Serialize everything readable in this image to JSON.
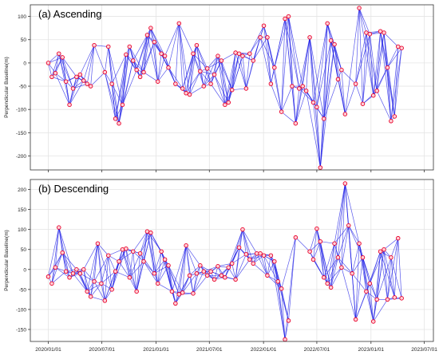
{
  "chart_data": [
    {
      "type": "scatter",
      "title": "(a) Ascending",
      "xlabel": "",
      "ylabel": "Perpendicular Baseline(m)",
      "x_is_date": true,
      "xlim": [
        "2019-11-01",
        "2023-08-01"
      ],
      "ylim": [
        -230,
        125
      ],
      "yticks": [
        100,
        50,
        0,
        -50,
        -100,
        -150,
        -200
      ],
      "grid": true,
      "point_color": "#e8002a",
      "line_color": "#1f1fe6",
      "points": [
        {
          "date": "2020-01-01",
          "y": 0
        },
        {
          "date": "2020-01-13",
          "y": -30
        },
        {
          "date": "2020-01-25",
          "y": -22
        },
        {
          "date": "2020-02-06",
          "y": 20
        },
        {
          "date": "2020-02-18",
          "y": 12
        },
        {
          "date": "2020-03-01",
          "y": -40
        },
        {
          "date": "2020-03-13",
          "y": -90
        },
        {
          "date": "2020-03-25",
          "y": -55
        },
        {
          "date": "2020-04-06",
          "y": -30
        },
        {
          "date": "2020-04-18",
          "y": -25
        },
        {
          "date": "2020-04-30",
          "y": -38
        },
        {
          "date": "2020-05-12",
          "y": -45
        },
        {
          "date": "2020-05-24",
          "y": -50
        },
        {
          "date": "2020-06-05",
          "y": 38
        },
        {
          "date": "2020-07-11",
          "y": -20
        },
        {
          "date": "2020-07-23",
          "y": 35
        },
        {
          "date": "2020-08-04",
          "y": -45
        },
        {
          "date": "2020-08-16",
          "y": -120
        },
        {
          "date": "2020-08-28",
          "y": -130
        },
        {
          "date": "2020-09-09",
          "y": -90
        },
        {
          "date": "2020-09-21",
          "y": 18
        },
        {
          "date": "2020-10-03",
          "y": 35
        },
        {
          "date": "2020-10-15",
          "y": 5
        },
        {
          "date": "2020-10-27",
          "y": -15
        },
        {
          "date": "2020-11-08",
          "y": -30
        },
        {
          "date": "2020-11-20",
          "y": -20
        },
        {
          "date": "2020-12-02",
          "y": 60
        },
        {
          "date": "2020-12-14",
          "y": 75
        },
        {
          "date": "2020-12-26",
          "y": 45
        },
        {
          "date": "2021-01-07",
          "y": -40
        },
        {
          "date": "2021-01-19",
          "y": 20
        },
        {
          "date": "2021-01-31",
          "y": 15
        },
        {
          "date": "2021-02-12",
          "y": -10
        },
        {
          "date": "2021-03-08",
          "y": -45
        },
        {
          "date": "2021-03-20",
          "y": 85
        },
        {
          "date": "2021-04-01",
          "y": -55
        },
        {
          "date": "2021-04-13",
          "y": -65
        },
        {
          "date": "2021-04-25",
          "y": -68
        },
        {
          "date": "2021-05-07",
          "y": 20
        },
        {
          "date": "2021-05-19",
          "y": 38
        },
        {
          "date": "2021-05-31",
          "y": -18
        },
        {
          "date": "2021-06-12",
          "y": -50
        },
        {
          "date": "2021-06-24",
          "y": -12
        },
        {
          "date": "2021-07-06",
          "y": -45
        },
        {
          "date": "2021-07-18",
          "y": -25
        },
        {
          "date": "2021-07-30",
          "y": 15
        },
        {
          "date": "2021-08-11",
          "y": 5
        },
        {
          "date": "2021-08-23",
          "y": -90
        },
        {
          "date": "2021-09-04",
          "y": -85
        },
        {
          "date": "2021-09-16",
          "y": -58
        },
        {
          "date": "2021-09-28",
          "y": 22
        },
        {
          "date": "2021-10-10",
          "y": 20
        },
        {
          "date": "2021-10-22",
          "y": 15
        },
        {
          "date": "2021-11-03",
          "y": -55
        },
        {
          "date": "2021-11-15",
          "y": 20
        },
        {
          "date": "2021-11-27",
          "y": 5
        },
        {
          "date": "2021-12-21",
          "y": 55
        },
        {
          "date": "2022-01-02",
          "y": 80
        },
        {
          "date": "2022-01-14",
          "y": 55
        },
        {
          "date": "2022-01-26",
          "y": -45
        },
        {
          "date": "2022-02-07",
          "y": -10
        },
        {
          "date": "2022-03-03",
          "y": -105
        },
        {
          "date": "2022-03-15",
          "y": 95
        },
        {
          "date": "2022-03-27",
          "y": 100
        },
        {
          "date": "2022-04-08",
          "y": -50
        },
        {
          "date": "2022-04-20",
          "y": -130
        },
        {
          "date": "2022-05-02",
          "y": -55
        },
        {
          "date": "2022-05-14",
          "y": -50
        },
        {
          "date": "2022-05-26",
          "y": -60
        },
        {
          "date": "2022-06-07",
          "y": 55
        },
        {
          "date": "2022-06-19",
          "y": -85
        },
        {
          "date": "2022-07-01",
          "y": -95
        },
        {
          "date": "2022-07-13",
          "y": -225
        },
        {
          "date": "2022-07-25",
          "y": -120
        },
        {
          "date": "2022-08-06",
          "y": 85
        },
        {
          "date": "2022-08-18",
          "y": 48
        },
        {
          "date": "2022-08-30",
          "y": 40
        },
        {
          "date": "2022-09-11",
          "y": -35
        },
        {
          "date": "2022-09-23",
          "y": -15
        },
        {
          "date": "2022-10-05",
          "y": -110
        },
        {
          "date": "2022-11-10",
          "y": -45
        },
        {
          "date": "2022-11-22",
          "y": 118
        },
        {
          "date": "2022-12-04",
          "y": -88
        },
        {
          "date": "2022-12-16",
          "y": 65
        },
        {
          "date": "2022-12-28",
          "y": 62
        },
        {
          "date": "2023-01-09",
          "y": -70
        },
        {
          "date": "2023-01-21",
          "y": -60
        },
        {
          "date": "2023-02-02",
          "y": 68
        },
        {
          "date": "2023-02-14",
          "y": 65
        },
        {
          "date": "2023-02-26",
          "y": -10
        },
        {
          "date": "2023-03-10",
          "y": -125
        },
        {
          "date": "2023-03-22",
          "y": -115
        },
        {
          "date": "2023-04-03",
          "y": 35
        },
        {
          "date": "2023-04-15",
          "y": 32
        }
      ]
    },
    {
      "type": "scatter",
      "title": "(b) Descending",
      "xlabel": "",
      "ylabel": "Perpendicular Baseline(m)",
      "x_is_date": true,
      "xlim": [
        "2019-11-01",
        "2023-08-01"
      ],
      "ylim": [
        -180,
        225
      ],
      "yticks": [
        200,
        150,
        100,
        50,
        0,
        -50,
        -100,
        -150
      ],
      "xticks": [
        "2020/01/01",
        "2020/07/01",
        "2021/01/01",
        "2021/07/01",
        "2022/01/01",
        "2022/07/01",
        "2023/01/01",
        "2023/07/01"
      ],
      "grid": true,
      "point_color": "#e8002a",
      "line_color": "#1f1fe6",
      "points": [
        {
          "date": "2020-01-01",
          "y": -18
        },
        {
          "date": "2020-01-13",
          "y": -35
        },
        {
          "date": "2020-01-25",
          "y": 5
        },
        {
          "date": "2020-02-06",
          "y": 105
        },
        {
          "date": "2020-02-18",
          "y": 42
        },
        {
          "date": "2020-03-01",
          "y": -5
        },
        {
          "date": "2020-03-13",
          "y": -20
        },
        {
          "date": "2020-03-25",
          "y": -10
        },
        {
          "date": "2020-04-06",
          "y": 0
        },
        {
          "date": "2020-04-18",
          "y": -10
        },
        {
          "date": "2020-04-30",
          "y": 0
        },
        {
          "date": "2020-05-12",
          "y": -55
        },
        {
          "date": "2020-05-24",
          "y": -68
        },
        {
          "date": "2020-06-05",
          "y": -30
        },
        {
          "date": "2020-06-17",
          "y": 65
        },
        {
          "date": "2020-06-29",
          "y": -35
        },
        {
          "date": "2020-07-11",
          "y": -78
        },
        {
          "date": "2020-07-23",
          "y": 35
        },
        {
          "date": "2020-08-04",
          "y": -50
        },
        {
          "date": "2020-08-16",
          "y": -5
        },
        {
          "date": "2020-08-28",
          "y": 20
        },
        {
          "date": "2020-09-09",
          "y": 50
        },
        {
          "date": "2020-09-21",
          "y": 52
        },
        {
          "date": "2020-10-03",
          "y": -20
        },
        {
          "date": "2020-10-15",
          "y": 45
        },
        {
          "date": "2020-10-27",
          "y": -55
        },
        {
          "date": "2020-11-08",
          "y": 40
        },
        {
          "date": "2020-11-20",
          "y": 20
        },
        {
          "date": "2020-12-02",
          "y": 95
        },
        {
          "date": "2020-12-14",
          "y": 92
        },
        {
          "date": "2020-12-26",
          "y": -10
        },
        {
          "date": "2021-01-07",
          "y": -35
        },
        {
          "date": "2021-01-19",
          "y": 45
        },
        {
          "date": "2021-01-31",
          "y": 25
        },
        {
          "date": "2021-02-12",
          "y": 10
        },
        {
          "date": "2021-02-24",
          "y": -55
        },
        {
          "date": "2021-03-08",
          "y": -85
        },
        {
          "date": "2021-03-20",
          "y": -62
        },
        {
          "date": "2021-04-01",
          "y": -58
        },
        {
          "date": "2021-04-13",
          "y": 60
        },
        {
          "date": "2021-04-25",
          "y": -15
        },
        {
          "date": "2021-05-07",
          "y": -60
        },
        {
          "date": "2021-05-19",
          "y": -10
        },
        {
          "date": "2021-05-31",
          "y": 10
        },
        {
          "date": "2021-06-12",
          "y": -5
        },
        {
          "date": "2021-06-24",
          "y": -15
        },
        {
          "date": "2021-07-06",
          "y": -5
        },
        {
          "date": "2021-07-18",
          "y": -25
        },
        {
          "date": "2021-07-30",
          "y": 8
        },
        {
          "date": "2021-08-11",
          "y": -15
        },
        {
          "date": "2021-08-23",
          "y": -20
        },
        {
          "date": "2021-09-04",
          "y": 5
        },
        {
          "date": "2021-09-16",
          "y": 15
        },
        {
          "date": "2021-09-28",
          "y": -25
        },
        {
          "date": "2021-10-10",
          "y": 55
        },
        {
          "date": "2021-10-22",
          "y": 100
        },
        {
          "date": "2021-11-03",
          "y": 38
        },
        {
          "date": "2021-11-15",
          "y": 25
        },
        {
          "date": "2021-11-27",
          "y": 15
        },
        {
          "date": "2021-12-09",
          "y": 40
        },
        {
          "date": "2021-12-21",
          "y": 40
        },
        {
          "date": "2022-01-02",
          "y": 35
        },
        {
          "date": "2022-01-14",
          "y": -15
        },
        {
          "date": "2022-01-26",
          "y": 35
        },
        {
          "date": "2022-02-07",
          "y": 20
        },
        {
          "date": "2022-02-19",
          "y": -30
        },
        {
          "date": "2022-03-03",
          "y": -48
        },
        {
          "date": "2022-03-15",
          "y": -175
        },
        {
          "date": "2022-03-27",
          "y": -128
        },
        {
          "date": "2022-04-20",
          "y": 80
        },
        {
          "date": "2022-06-07",
          "y": 45
        },
        {
          "date": "2022-06-19",
          "y": 25
        },
        {
          "date": "2022-07-01",
          "y": 102
        },
        {
          "date": "2022-07-13",
          "y": 70
        },
        {
          "date": "2022-07-25",
          "y": -20
        },
        {
          "date": "2022-08-06",
          "y": -35
        },
        {
          "date": "2022-08-18",
          "y": -45
        },
        {
          "date": "2022-08-30",
          "y": 65
        },
        {
          "date": "2022-09-11",
          "y": 30
        },
        {
          "date": "2022-09-23",
          "y": 5
        },
        {
          "date": "2022-10-05",
          "y": 215
        },
        {
          "date": "2022-10-17",
          "y": 110
        },
        {
          "date": "2022-10-29",
          "y": -10
        },
        {
          "date": "2022-11-10",
          "y": -125
        },
        {
          "date": "2022-11-22",
          "y": 65
        },
        {
          "date": "2022-12-04",
          "y": 30
        },
        {
          "date": "2022-12-16",
          "y": -55
        },
        {
          "date": "2022-12-28",
          "y": -35
        },
        {
          "date": "2023-01-09",
          "y": -130
        },
        {
          "date": "2023-01-21",
          "y": -75
        },
        {
          "date": "2023-02-02",
          "y": 45
        },
        {
          "date": "2023-02-14",
          "y": 50
        },
        {
          "date": "2023-02-26",
          "y": -75
        },
        {
          "date": "2023-03-10",
          "y": 30
        },
        {
          "date": "2023-03-22",
          "y": -70
        },
        {
          "date": "2023-04-03",
          "y": 78
        },
        {
          "date": "2023-04-15",
          "y": -72
        }
      ]
    }
  ]
}
